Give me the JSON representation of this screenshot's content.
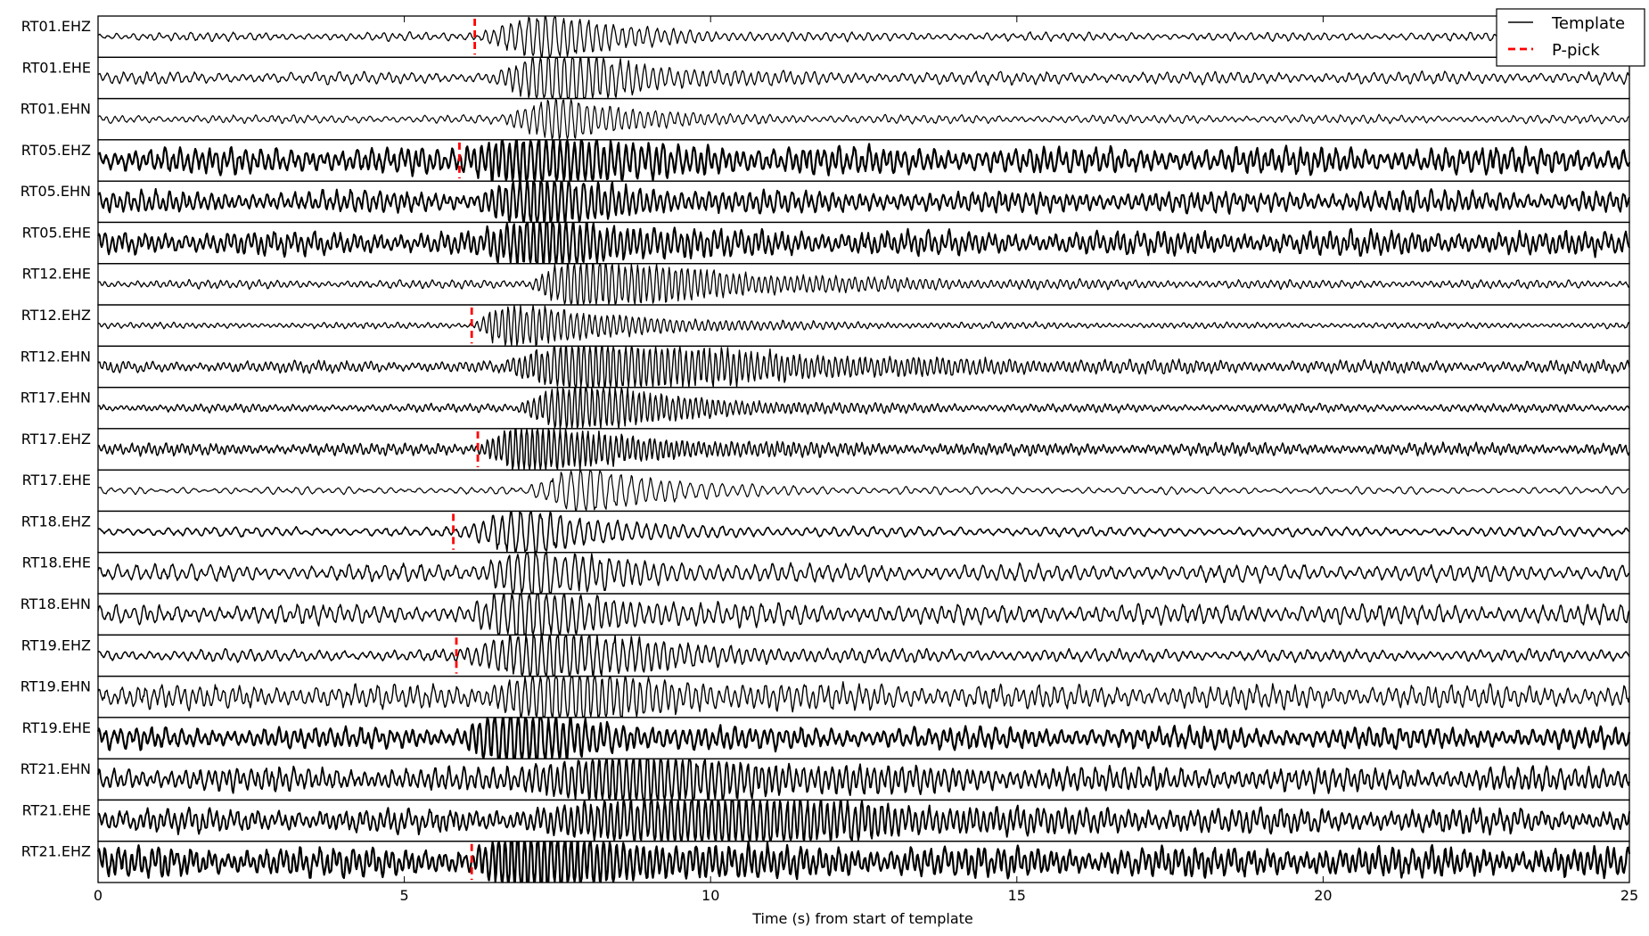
{
  "chart_data": {
    "type": "line",
    "title": "",
    "xlabel": "Time (s) from start of template",
    "ylabel": "",
    "xlim": [
      0,
      25
    ],
    "xticks": [
      0,
      5,
      10,
      15,
      20,
      25
    ],
    "legend": {
      "placement": "top-right",
      "entries": [
        {
          "label": "Template",
          "style": "solid",
          "color": "#000000"
        },
        {
          "label": "P-pick",
          "style": "dashed",
          "color": "#ff0000"
        }
      ]
    },
    "series": [
      {
        "name": "RT01.EHZ",
        "p_pick": 6.15,
        "onset": 6.2,
        "peak": 7.2,
        "duration": 2.6,
        "noise": 0.07,
        "signal": 0.75,
        "lw": 1.3
      },
      {
        "name": "RT01.EHE",
        "p_pick": null,
        "onset": 6.4,
        "peak": 7.5,
        "duration": 2.6,
        "noise": 0.1,
        "signal": 0.95,
        "lw": 1.3
      },
      {
        "name": "RT01.EHN",
        "p_pick": null,
        "onset": 6.6,
        "peak": 7.5,
        "duration": 2.3,
        "noise": 0.07,
        "signal": 0.7,
        "lw": 1.2
      },
      {
        "name": "RT05.EHZ",
        "p_pick": 5.9,
        "onset": 5.9,
        "peak": 7.0,
        "duration": 3.2,
        "noise": 0.22,
        "signal": 0.7,
        "lw": 2.2
      },
      {
        "name": "RT05.EHN",
        "p_pick": null,
        "onset": 6.1,
        "peak": 7.1,
        "duration": 2.4,
        "noise": 0.18,
        "signal": 0.75,
        "lw": 2.0
      },
      {
        "name": "RT05.EHE",
        "p_pick": null,
        "onset": 6.2,
        "peak": 7.2,
        "duration": 2.8,
        "noise": 0.2,
        "signal": 0.75,
        "lw": 2.0
      },
      {
        "name": "RT12.EHE",
        "p_pick": null,
        "onset": 7.0,
        "peak": 7.7,
        "duration": 5.0,
        "noise": 0.07,
        "signal": 0.85,
        "lw": 1.3
      },
      {
        "name": "RT12.EHZ",
        "p_pick": 6.1,
        "onset": 6.1,
        "peak": 6.5,
        "duration": 4.0,
        "noise": 0.05,
        "signal": 0.7,
        "lw": 1.3
      },
      {
        "name": "RT12.EHN",
        "p_pick": null,
        "onset": 6.6,
        "peak": 7.8,
        "duration": 6.5,
        "noise": 0.1,
        "signal": 0.85,
        "lw": 1.4
      },
      {
        "name": "RT17.EHN",
        "p_pick": null,
        "onset": 6.8,
        "peak": 7.6,
        "duration": 3.5,
        "noise": 0.07,
        "signal": 0.85,
        "lw": 1.4
      },
      {
        "name": "RT17.EHZ",
        "p_pick": 6.2,
        "onset": 6.2,
        "peak": 6.8,
        "duration": 3.6,
        "noise": 0.1,
        "signal": 0.8,
        "lw": 1.5
      },
      {
        "name": "RT17.EHE",
        "p_pick": null,
        "onset": 7.0,
        "peak": 7.8,
        "duration": 2.8,
        "noise": 0.06,
        "signal": 0.75,
        "lw": 1.2
      },
      {
        "name": "RT18.EHZ",
        "p_pick": 5.8,
        "onset": 5.9,
        "peak": 6.9,
        "duration": 2.6,
        "noise": 0.08,
        "signal": 0.75,
        "lw": 1.6
      },
      {
        "name": "RT18.EHE",
        "p_pick": null,
        "onset": 6.2,
        "peak": 6.8,
        "duration": 2.8,
        "noise": 0.14,
        "signal": 0.8,
        "lw": 1.5
      },
      {
        "name": "RT18.EHN",
        "p_pick": null,
        "onset": 6.0,
        "peak": 6.8,
        "duration": 3.0,
        "noise": 0.16,
        "signal": 0.8,
        "lw": 1.5
      },
      {
        "name": "RT19.EHZ",
        "p_pick": 5.85,
        "onset": 5.9,
        "peak": 7.3,
        "duration": 3.6,
        "noise": 0.1,
        "signal": 0.85,
        "lw": 1.5
      },
      {
        "name": "RT19.EHN",
        "p_pick": null,
        "onset": 6.3,
        "peak": 7.3,
        "duration": 3.2,
        "noise": 0.2,
        "signal": 0.85,
        "lw": 1.4
      },
      {
        "name": "RT19.EHE",
        "p_pick": null,
        "onset": 5.9,
        "peak": 6.6,
        "duration": 2.4,
        "noise": 0.18,
        "signal": 0.9,
        "lw": 2.2
      },
      {
        "name": "RT21.EHN",
        "p_pick": null,
        "onset": 6.6,
        "peak": 8.6,
        "duration": 4.5,
        "noise": 0.2,
        "signal": 0.7,
        "lw": 1.8
      },
      {
        "name": "RT21.EHE",
        "p_pick": null,
        "onset": 6.6,
        "peak": 10.3,
        "duration": 5.0,
        "noise": 0.2,
        "signal": 0.7,
        "lw": 1.9
      },
      {
        "name": "RT21.EHZ",
        "p_pick": 6.1,
        "onset": 6.1,
        "peak": 6.8,
        "duration": 3.6,
        "noise": 0.25,
        "signal": 0.9,
        "lw": 2.2
      }
    ]
  }
}
